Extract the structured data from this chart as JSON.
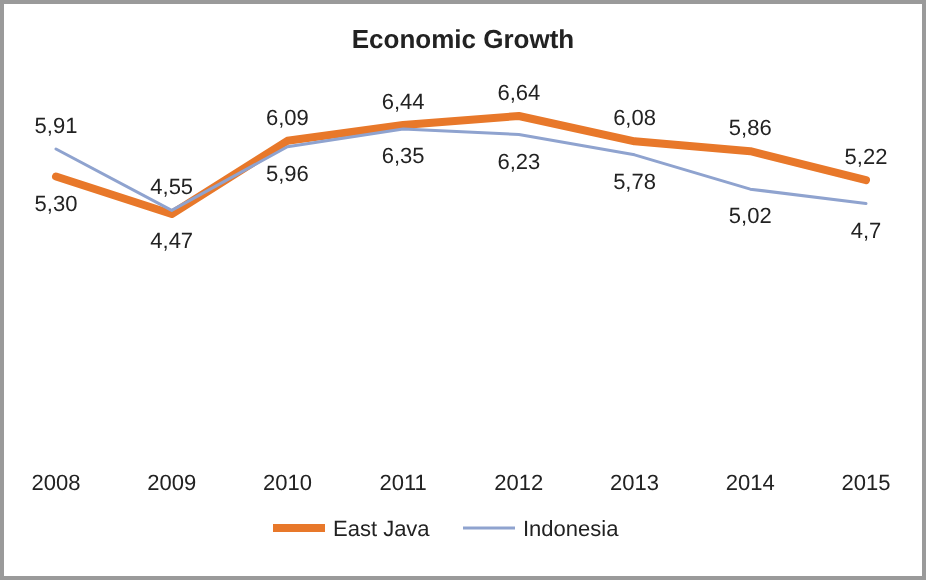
{
  "chart_data": {
    "type": "line",
    "title": "Economic Growth",
    "categories": [
      "2008",
      "2009",
      "2010",
      "2011",
      "2012",
      "2013",
      "2014",
      "2015"
    ],
    "series": [
      {
        "name": "East Java",
        "color": "#e8782a",
        "values": [
          5.3,
          4.47,
          6.09,
          6.44,
          6.64,
          6.08,
          5.86,
          5.22
        ],
        "value_labels": [
          "5,30",
          "4,47",
          "6,09",
          "6,44",
          "6,64",
          "6,08",
          "5,86",
          "5,22"
        ]
      },
      {
        "name": "Indonesia",
        "color": "#8fa3cf",
        "values": [
          5.91,
          4.55,
          5.96,
          6.35,
          6.23,
          5.78,
          5.02,
          4.7
        ],
        "value_labels": [
          "5,91",
          "4,55",
          "5,96",
          "6,35",
          "6,23",
          "5,78",
          "5,02",
          "4,7"
        ]
      }
    ],
    "legend": "bottom",
    "marker": "none",
    "line_style": "solid"
  }
}
